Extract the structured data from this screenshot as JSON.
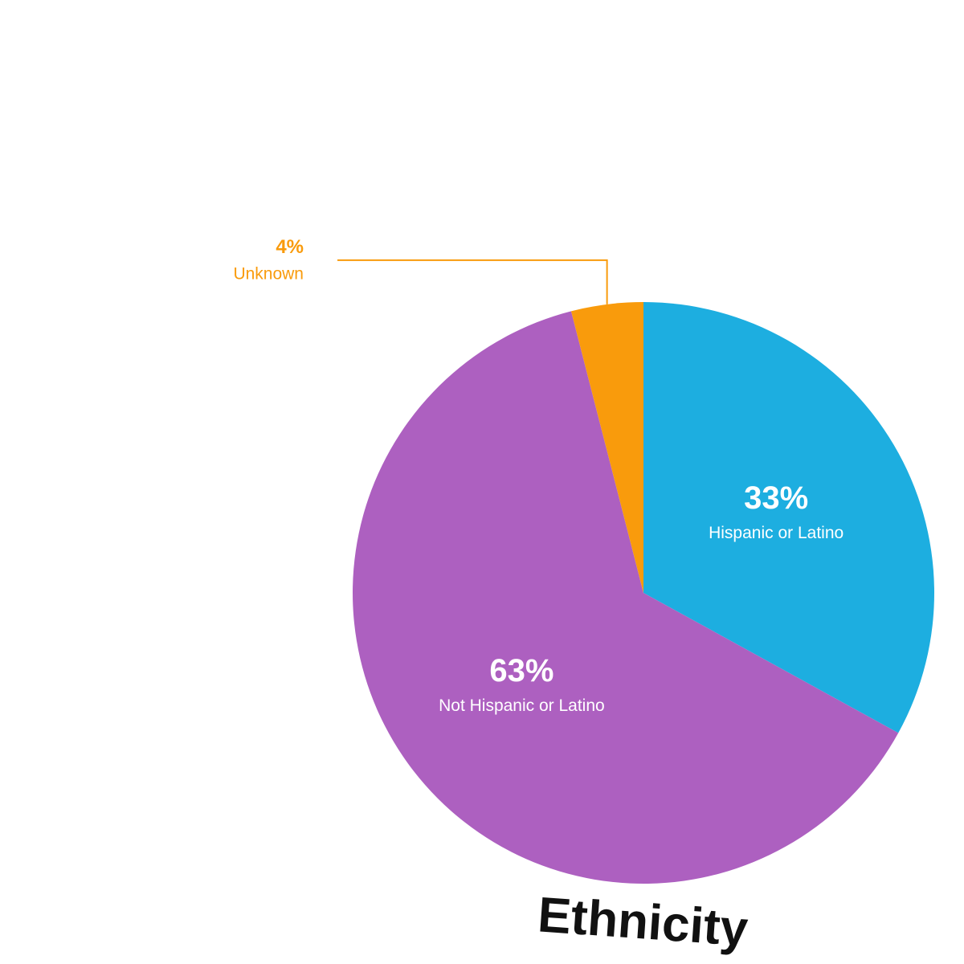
{
  "chart_data": {
    "type": "pie",
    "title": "Ethnicity",
    "categories": [
      "Hispanic or Latino",
      "Not Hispanic or Latino",
      "Unknown"
    ],
    "values": [
      33,
      63,
      4
    ],
    "value_labels": [
      "33%",
      "63%",
      "4%"
    ],
    "colors": [
      "#1daee0",
      "#ad60c0",
      "#f99b0c"
    ]
  }
}
